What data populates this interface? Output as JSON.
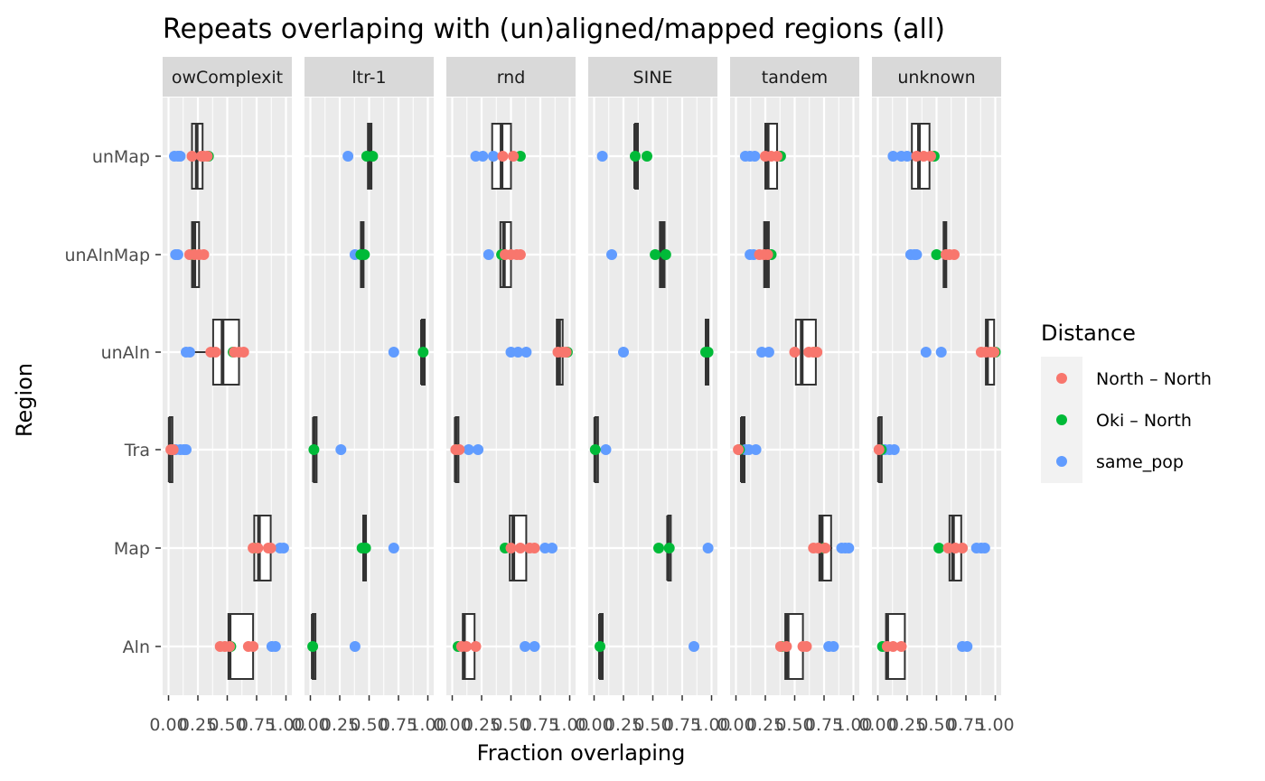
{
  "chart_data": {
    "type": "box+jitter (faceted, horizontal)",
    "title": "Repeats overlaping with (un)aligned/mapped regions (all)",
    "xlabel": "Fraction overlaping",
    "ylabel": "Region",
    "xlim": [
      0,
      1
    ],
    "x_ticks": [
      "0.00",
      "0.25",
      "0.50",
      "0.75",
      "1.00"
    ],
    "regions": [
      "unMap",
      "unAlnMap",
      "unAln",
      "Tra",
      "Map",
      "Aln"
    ],
    "legend": {
      "title": "Distance",
      "placement": "right",
      "entries": [
        {
          "label": "North – North",
          "color": "#F8766D"
        },
        {
          "label": "Oki – North",
          "color": "#00BA38"
        },
        {
          "label": "same_pop",
          "color": "#619CFF"
        }
      ]
    },
    "facets": [
      {
        "label": "owComplexit",
        "boxes": {
          "unMap": [
            0.18,
            0.2,
            0.24,
            0.29,
            0.3
          ],
          "unAlnMap": [
            0.19,
            0.2,
            0.22,
            0.26,
            0.27
          ],
          "unAln": [
            0.2,
            0.38,
            0.46,
            0.6,
            0.61
          ],
          "Tra": [
            0.01,
            0.01,
            0.01,
            0.02,
            0.02
          ],
          "Map": [
            0.72,
            0.73,
            0.77,
            0.87,
            0.88
          ],
          "Aln": [
            0.5,
            0.51,
            0.52,
            0.72,
            0.73
          ]
        },
        "points": {
          "unMap": {
            "North – North": [
              0.2,
              0.28,
              0.3,
              0.33
            ],
            "Oki – North": [
              0.34
            ],
            "same_pop": [
              0.05,
              0.08,
              0.1
            ]
          },
          "unAlnMap": {
            "North – North": [
              0.18,
              0.22,
              0.26,
              0.3
            ],
            "Oki – North": [
              0.2
            ],
            "same_pop": [
              0.06,
              0.08
            ]
          },
          "unAln": {
            "North – North": [
              0.36,
              0.4,
              0.56,
              0.6,
              0.64
            ],
            "Oki – North": [
              0.55
            ],
            "same_pop": [
              0.15,
              0.18
            ]
          },
          "Tra": {
            "North – North": [
              0.02,
              0.04
            ],
            "Oki – North": [
              0.03
            ],
            "same_pop": [
              0.06,
              0.1,
              0.13,
              0.15
            ]
          },
          "Map": {
            "North – North": [
              0.72,
              0.76,
              0.85,
              0.87
            ],
            "Oki – North": [
              0.73
            ],
            "same_pop": [
              0.95,
              0.98
            ]
          },
          "Aln": {
            "North – North": [
              0.44,
              0.48,
              0.52,
              0.68,
              0.72
            ],
            "Oki – North": [
              0.53
            ],
            "same_pop": [
              0.88,
              0.91
            ]
          }
        }
      },
      {
        "label": "ltr-1",
        "boxes": {
          "unMap": [
            0.48,
            0.49,
            0.5,
            0.52,
            0.53
          ],
          "unAlnMap": [
            0.42,
            0.43,
            0.44,
            0.45,
            0.46
          ],
          "unAln": [
            0.95,
            0.95,
            0.95,
            0.96,
            0.96
          ],
          "Tra": [
            0.03,
            0.03,
            0.03,
            0.03,
            0.03
          ],
          "Map": [
            0.44,
            0.45,
            0.46,
            0.46,
            0.47
          ],
          "Aln": [
            0.02,
            0.02,
            0.02,
            0.02,
            0.02
          ]
        },
        "points": {
          "unMap": {
            "North – North": [],
            "Oki – North": [
              0.48,
              0.53
            ],
            "same_pop": [
              0.32
            ]
          },
          "unAlnMap": {
            "North – North": [],
            "Oki – North": [
              0.43,
              0.46
            ],
            "same_pop": [
              0.38
            ]
          },
          "unAln": {
            "North – North": [],
            "Oki – North": [
              0.96
            ],
            "same_pop": [
              0.71
            ]
          },
          "Tra": {
            "North – North": [],
            "Oki – North": [
              0.03
            ],
            "same_pop": [
              0.26
            ]
          },
          "Map": {
            "North – North": [],
            "Oki – North": [
              0.44,
              0.47
            ],
            "same_pop": [
              0.71
            ]
          },
          "Aln": {
            "North – North": [],
            "Oki – North": [
              0.02
            ],
            "same_pop": [
              0.38
            ]
          }
        }
      },
      {
        "label": "rnd",
        "boxes": {
          "unMap": [
            0.33,
            0.34,
            0.42,
            0.5,
            0.51
          ],
          "unAlnMap": [
            0.4,
            0.41,
            0.44,
            0.5,
            0.51
          ],
          "unAln": [
            0.88,
            0.89,
            0.91,
            0.94,
            0.95
          ],
          "Tra": [
            0.03,
            0.03,
            0.03,
            0.03,
            0.03
          ],
          "Map": [
            0.48,
            0.49,
            0.52,
            0.63,
            0.64
          ],
          "Aln": [
            0.08,
            0.09,
            0.1,
            0.19,
            0.2
          ]
        },
        "points": {
          "unMap": {
            "North – North": [
              0.43,
              0.52
            ],
            "Oki – North": [
              0.58
            ],
            "same_pop": [
              0.2,
              0.26,
              0.35
            ]
          },
          "unAlnMap": {
            "North – North": [
              0.45,
              0.5,
              0.55,
              0.58
            ],
            "Oki – North": [
              0.42
            ],
            "same_pop": [
              0.31
            ]
          },
          "unAln": {
            "North – North": [
              0.9,
              0.94,
              0.97
            ],
            "Oki – North": [
              0.98
            ],
            "same_pop": [
              0.5,
              0.56,
              0.63
            ]
          },
          "Tra": {
            "North – North": [
              0.03,
              0.06
            ],
            "Oki – North": [
              0.05
            ],
            "same_pop": [
              0.14,
              0.22
            ]
          },
          "Map": {
            "North – North": [
              0.5,
              0.58,
              0.66,
              0.7
            ],
            "Oki – North": [
              0.45
            ],
            "same_pop": [
              0.79,
              0.85
            ]
          },
          "Aln": {
            "North – North": [
              0.08,
              0.12,
              0.2
            ],
            "Oki – North": [
              0.05
            ],
            "same_pop": [
              0.62,
              0.7
            ]
          }
        }
      },
      {
        "label": "SINE",
        "boxes": {
          "unMap": [
            0.35,
            0.35,
            0.35,
            0.35,
            0.35
          ],
          "unAlnMap": [
            0.55,
            0.56,
            0.58,
            0.6,
            0.61
          ],
          "unAln": [
            0.95,
            0.95,
            0.96,
            0.96,
            0.96
          ],
          "Tra": [
            0.01,
            0.01,
            0.01,
            0.01,
            0.01
          ],
          "Map": [
            0.63,
            0.63,
            0.63,
            0.64,
            0.64
          ],
          "Aln": [
            0.05,
            0.05,
            0.05,
            0.05,
            0.05
          ]
        },
        "points": {
          "unMap": {
            "North – North": [],
            "Oki – North": [
              0.35,
              0.45
            ],
            "same_pop": [
              0.07
            ]
          },
          "unAlnMap": {
            "North – North": [],
            "Oki – North": [
              0.52,
              0.61
            ],
            "same_pop": [
              0.15
            ]
          },
          "unAln": {
            "North – North": [],
            "Oki – North": [
              0.95,
              0.97
            ],
            "same_pop": [
              0.25
            ]
          },
          "Tra": {
            "North – North": [],
            "Oki – North": [
              0.01
            ],
            "same_pop": [
              0.1
            ]
          },
          "Map": {
            "North – North": [],
            "Oki – North": [
              0.55,
              0.64
            ],
            "same_pop": [
              0.97
            ]
          },
          "Aln": {
            "North – North": [],
            "Oki – North": [
              0.05
            ],
            "same_pop": [
              0.85
            ]
          }
        }
      },
      {
        "label": "tandem",
        "boxes": {
          "unMap": [
            0.24,
            0.25,
            0.27,
            0.35,
            0.36
          ],
          "unAlnMap": [
            0.23,
            0.24,
            0.26,
            0.28,
            0.29
          ],
          "unAln": [
            0.5,
            0.51,
            0.56,
            0.68,
            0.69
          ],
          "Tra": [
            0.05,
            0.05,
            0.05,
            0.05,
            0.05
          ],
          "Map": [
            0.7,
            0.71,
            0.73,
            0.81,
            0.82
          ],
          "Aln": [
            0.41,
            0.42,
            0.44,
            0.57,
            0.58
          ]
        },
        "points": {
          "unMap": {
            "North – North": [
              0.25,
              0.3,
              0.35
            ],
            "Oki – North": [
              0.38
            ],
            "same_pop": [
              0.08,
              0.12,
              0.16
            ]
          },
          "unAlnMap": {
            "North – North": [
              0.2,
              0.24,
              0.27
            ],
            "Oki – North": [
              0.3
            ],
            "same_pop": [
              0.12,
              0.15
            ]
          },
          "unAln": {
            "North – North": [
              0.5,
              0.62,
              0.66,
              0.69
            ],
            "Oki – North": [
              0.68
            ],
            "same_pop": [
              0.22,
              0.28
            ]
          },
          "Tra": {
            "North – North": [
              0.02
            ],
            "Oki – North": [
              0.03
            ],
            "same_pop": [
              0.08,
              0.11,
              0.17
            ]
          },
          "Map": {
            "North – North": [
              0.66,
              0.7,
              0.76
            ],
            "Oki – North": [
              0.75
            ],
            "same_pop": [
              0.9,
              0.93,
              0.96
            ]
          },
          "Aln": {
            "North – North": [
              0.38,
              0.43,
              0.57,
              0.6
            ],
            "Oki – North": [
              0.39
            ],
            "same_pop": [
              0.79,
              0.83
            ]
          }
        }
      },
      {
        "label": "unknown",
        "boxes": {
          "unMap": [
            0.28,
            0.29,
            0.35,
            0.44,
            0.45
          ],
          "unAlnMap": [
            0.56,
            0.56,
            0.57,
            0.58,
            0.58
          ],
          "unAln": [
            0.92,
            0.92,
            0.93,
            0.99,
            0.99
          ],
          "Tra": [
            0.01,
            0.01,
            0.01,
            0.01,
            0.01
          ],
          "Map": [
            0.6,
            0.61,
            0.64,
            0.71,
            0.72
          ],
          "Aln": [
            0.06,
            0.07,
            0.08,
            0.23,
            0.24
          ]
        },
        "points": {
          "unMap": {
            "North – North": [
              0.33,
              0.39,
              0.45
            ],
            "Oki – North": [
              0.48
            ],
            "same_pop": [
              0.13,
              0.2,
              0.25
            ]
          },
          "unAlnMap": {
            "North – North": [
              0.58,
              0.61,
              0.65
            ],
            "Oki – North": [
              0.5
            ],
            "same_pop": [
              0.28,
              0.31,
              0.33
            ]
          },
          "unAln": {
            "North – North": [
              0.88,
              0.92,
              0.96,
              0.99
            ],
            "Oki – North": [
              1.0
            ],
            "same_pop": [
              0.41,
              0.54
            ]
          },
          "Tra": {
            "North – North": [
              0.01
            ],
            "Oki – North": [
              0.03
            ],
            "same_pop": [
              0.06,
              0.1,
              0.14
            ]
          },
          "Map": {
            "North – North": [
              0.6,
              0.66,
              0.72
            ],
            "Oki – North": [
              0.52
            ],
            "same_pop": [
              0.84,
              0.88,
              0.91
            ]
          },
          "Aln": {
            "North – North": [
              0.08,
              0.13,
              0.2
            ],
            "Oki – North": [
              0.04
            ],
            "same_pop": [
              0.72,
              0.76
            ]
          }
        }
      }
    ]
  }
}
